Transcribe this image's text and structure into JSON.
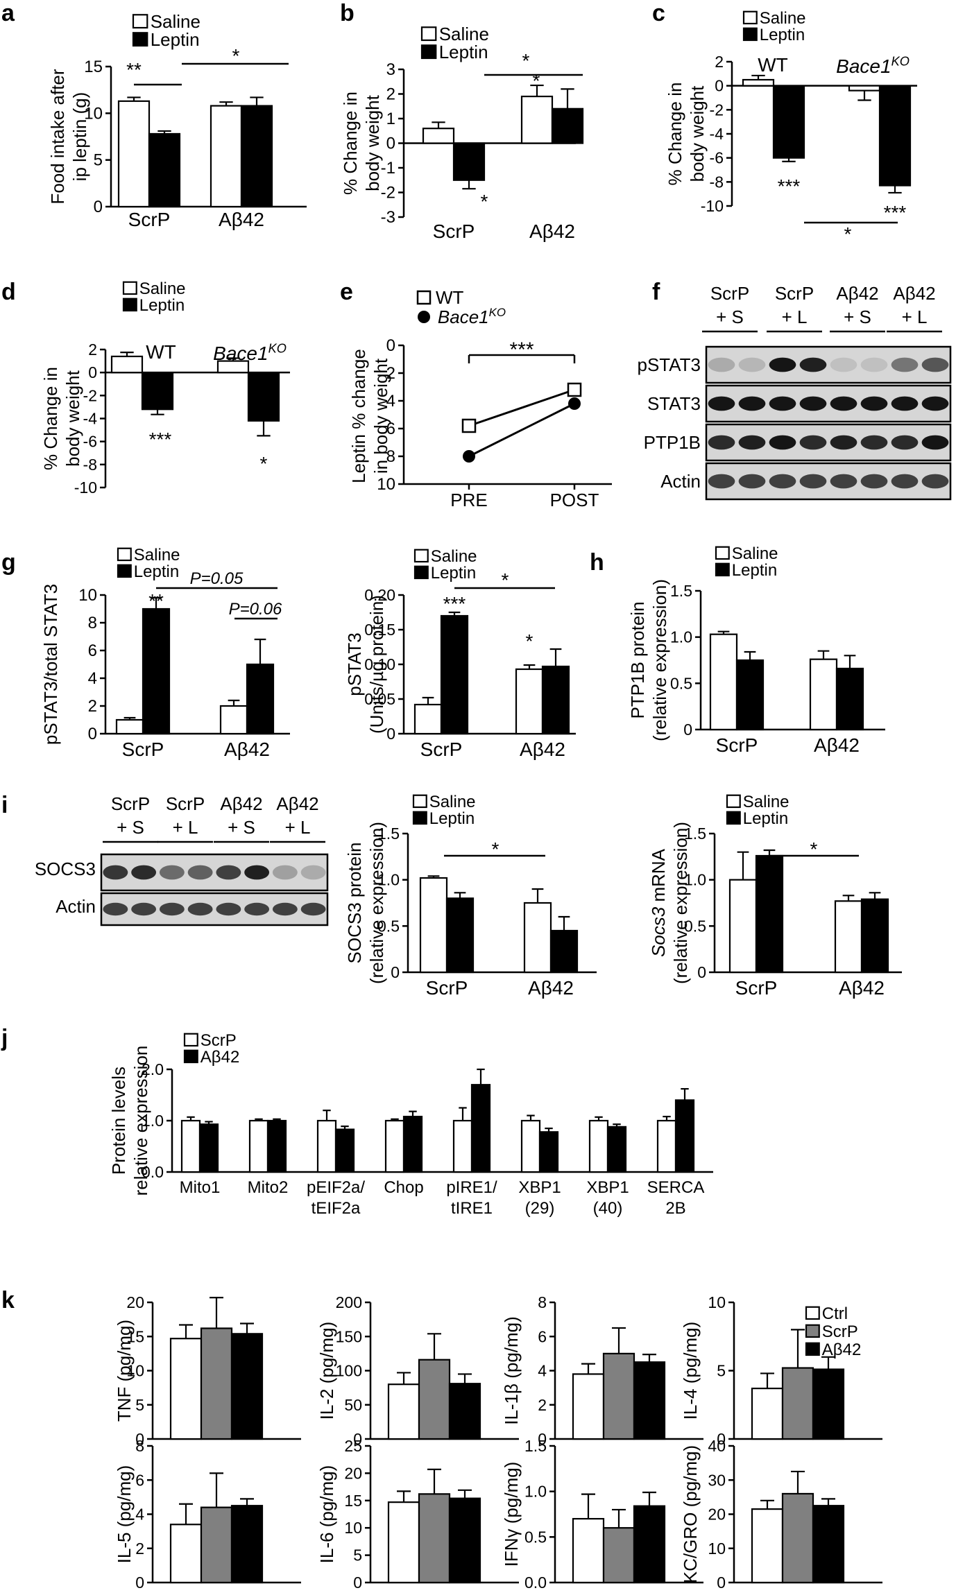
{
  "panel_labels": [
    "a",
    "b",
    "c",
    "d",
    "e",
    "f",
    "g",
    "h",
    "i",
    "j",
    "k"
  ],
  "common": {
    "saline": "Saline",
    "leptin": "Leptin",
    "scrp": "ScrP",
    "abeta": "Aβ42",
    "star1": "*",
    "star2": "**",
    "star3": "***"
  },
  "chart_data": [
    {
      "id": "a",
      "type": "bar",
      "categories": [
        "ScrP",
        "Aβ42"
      ],
      "ylabel": [
        "Food intake after",
        "ip leptin (g)"
      ],
      "ylim": [
        0,
        15
      ],
      "ticks": [
        0,
        5,
        10,
        15
      ],
      "series": [
        {
          "name": "Saline",
          "values": [
            11.3,
            10.8
          ],
          "errors": [
            0.4,
            0.4
          ]
        },
        {
          "name": "Leptin",
          "values": [
            7.8,
            10.8
          ],
          "errors": [
            0.3,
            0.9
          ]
        }
      ],
      "annotations": [
        "**",
        "*"
      ]
    },
    {
      "id": "b",
      "type": "bar",
      "categories": [
        "ScrP",
        "Aβ42"
      ],
      "ylabel": [
        "% Change in",
        "body weight"
      ],
      "ylim": [
        -3,
        3
      ],
      "ticks": [
        -3,
        -2,
        -1,
        0,
        1,
        2,
        3
      ],
      "series": [
        {
          "name": "Saline",
          "values": [
            0.6,
            1.9
          ],
          "errors": [
            0.25,
            0.45
          ]
        },
        {
          "name": "Leptin",
          "values": [
            -1.5,
            1.4
          ],
          "errors": [
            0.35,
            0.8
          ]
        }
      ],
      "annotations": [
        "*",
        "*",
        "*"
      ]
    },
    {
      "id": "c",
      "type": "bar",
      "categories": [
        "WT",
        "Bace1KO"
      ],
      "ylabel": [
        "% Change in",
        "body weight"
      ],
      "ylim": [
        -10,
        2
      ],
      "ticks": [
        -10,
        -8,
        -6,
        -4,
        -2,
        0,
        2
      ],
      "series": [
        {
          "name": "Saline",
          "values": [
            0.5,
            -0.4
          ],
          "errors": [
            0.35,
            0.8
          ]
        },
        {
          "name": "Leptin",
          "values": [
            -6.0,
            -8.3
          ],
          "errors": [
            0.3,
            0.6
          ]
        }
      ],
      "annotations": [
        "***",
        "***",
        "*"
      ]
    },
    {
      "id": "d",
      "type": "bar",
      "categories": [
        "WT",
        "Bace1KO"
      ],
      "ylabel": [
        "% Change in",
        "body weight"
      ],
      "ylim": [
        -10,
        2
      ],
      "ticks": [
        -10,
        -8,
        -6,
        -4,
        -2,
        0,
        2
      ],
      "series": [
        {
          "name": "Saline",
          "values": [
            1.4,
            1.0
          ],
          "errors": [
            0.35,
            0.25
          ]
        },
        {
          "name": "Leptin",
          "values": [
            -3.2,
            -4.2
          ],
          "errors": [
            0.45,
            1.3
          ]
        }
      ],
      "annotations": [
        "***",
        "*"
      ]
    },
    {
      "id": "e",
      "type": "line",
      "categories": [
        "PRE",
        "POST"
      ],
      "ylabel": [
        "Leptin % change",
        "in body weight"
      ],
      "ylim": [
        10,
        0
      ],
      "ticks": [
        0,
        2,
        4,
        6,
        8,
        10
      ],
      "series": [
        {
          "name": "WT",
          "values": [
            5.8,
            3.2
          ]
        },
        {
          "name": "Bace1KO",
          "values": [
            8.0,
            4.2
          ]
        }
      ],
      "annotations": [
        "***"
      ]
    },
    {
      "id": "g1",
      "type": "bar",
      "categories": [
        "ScrP",
        "Aβ42"
      ],
      "ylabel": [
        "pSTAT3/total STAT3"
      ],
      "ylim": [
        0,
        10
      ],
      "ticks": [
        0,
        2,
        4,
        6,
        8,
        10
      ],
      "series": [
        {
          "name": "Saline",
          "values": [
            1.0,
            2.0
          ],
          "errors": [
            0.15,
            0.4
          ]
        },
        {
          "name": "Leptin",
          "values": [
            9.0,
            5.0
          ],
          "errors": [
            0.8,
            1.8
          ]
        }
      ],
      "annotations": [
        "**",
        "P=0.05",
        "P=0.06"
      ]
    },
    {
      "id": "g2",
      "type": "bar",
      "categories": [
        "ScrP",
        "Aβ42"
      ],
      "ylabel": [
        "pSTAT3",
        "(Units/µg protein)"
      ],
      "ylim": [
        0,
        0.2
      ],
      "ticks": [
        "0",
        "0.05",
        "0.10",
        "0.15",
        "0.20"
      ],
      "series": [
        {
          "name": "Saline",
          "values": [
            0.042,
            0.093
          ],
          "errors": [
            0.01,
            0.006
          ]
        },
        {
          "name": "Leptin",
          "values": [
            0.17,
            0.097
          ],
          "errors": [
            0.005,
            0.025
          ]
        }
      ],
      "annotations": [
        "***",
        "*",
        "*"
      ]
    },
    {
      "id": "h",
      "type": "bar",
      "categories": [
        "ScrP",
        "Aβ42"
      ],
      "ylabel": [
        "PTP1B protein",
        "(relative expression)"
      ],
      "ylim": [
        0,
        1.5
      ],
      "ticks": [
        "0",
        "0.5",
        "1.0",
        "1.5"
      ],
      "series": [
        {
          "name": "Saline",
          "values": [
            1.03,
            0.76
          ],
          "errors": [
            0.03,
            0.09
          ]
        },
        {
          "name": "Leptin",
          "values": [
            0.75,
            0.66
          ],
          "errors": [
            0.09,
            0.14
          ]
        }
      ]
    },
    {
      "id": "i2",
      "type": "bar",
      "categories": [
        "ScrP",
        "Aβ42"
      ],
      "ylabel": [
        "SOCS3 protein",
        "(relative expression)"
      ],
      "ylim": [
        0,
        1.5
      ],
      "ticks": [
        "0",
        "0.5",
        "1.0",
        "1.5"
      ],
      "series": [
        {
          "name": "Saline",
          "values": [
            1.02,
            0.75
          ],
          "errors": [
            0.02,
            0.15
          ]
        },
        {
          "name": "Leptin",
          "values": [
            0.8,
            0.45
          ],
          "errors": [
            0.06,
            0.15
          ]
        }
      ],
      "annotations": [
        "*"
      ]
    },
    {
      "id": "i3",
      "type": "bar",
      "categories": [
        "ScrP",
        "Aβ42"
      ],
      "ylabel": [
        "Socs3 mRNA",
        "(relative expression)"
      ],
      "ylim": [
        0,
        1.5
      ],
      "ticks": [
        "0",
        "0.5",
        "1.0",
        "1.5"
      ],
      "series": [
        {
          "name": "Saline",
          "values": [
            1.0,
            0.77
          ],
          "errors": [
            0.3,
            0.06
          ]
        },
        {
          "name": "Leptin",
          "values": [
            1.26,
            0.79
          ],
          "errors": [
            0.06,
            0.07
          ]
        }
      ],
      "annotations": [
        "*"
      ]
    },
    {
      "id": "j",
      "type": "bar",
      "categories": [
        [
          "Mito1"
        ],
        [
          "Mito2"
        ],
        [
          "pEIF2a/",
          "tEIF2a"
        ],
        [
          "Chop"
        ],
        [
          "pIRE1/",
          "tIRE1"
        ],
        [
          "XBP1",
          "(29)"
        ],
        [
          "XBP1",
          "(40)"
        ],
        [
          "SERCA",
          "2B"
        ]
      ],
      "ylabel": [
        "Protein levels",
        "relative expression"
      ],
      "ylim": [
        0,
        2
      ],
      "ticks": [
        "0.0",
        "1.0",
        "2.0"
      ],
      "series": [
        {
          "name": "ScrP",
          "values": [
            1.0,
            1.0,
            1.0,
            1.0,
            1.0,
            1.0,
            1.0,
            1.0
          ],
          "errors": [
            0.07,
            0.03,
            0.2,
            0.03,
            0.25,
            0.1,
            0.07,
            0.08
          ]
        },
        {
          "name": "Aβ42",
          "values": [
            0.93,
            1.0,
            0.83,
            1.08,
            1.7,
            0.78,
            0.88,
            1.4
          ],
          "errors": [
            0.05,
            0.03,
            0.06,
            0.1,
            0.3,
            0.07,
            0.05,
            0.22
          ]
        }
      ]
    },
    {
      "id": "k1",
      "type": "bar",
      "ylabel": "TNF (pg/mg)",
      "ylim": [
        0,
        20
      ],
      "ticks": [
        0,
        5,
        10,
        15,
        20
      ],
      "series": [
        {
          "name": "Ctrl",
          "values": [
            14.7
          ],
          "errors": [
            2.0
          ]
        },
        {
          "name": "ScrP",
          "values": [
            16.2
          ],
          "errors": [
            4.5
          ]
        },
        {
          "name": "Aβ42",
          "values": [
            15.4
          ],
          "errors": [
            1.5
          ]
        }
      ]
    },
    {
      "id": "k2",
      "type": "bar",
      "ylabel": "IL-2 (pg/mg)",
      "ylim": [
        0,
        200
      ],
      "ticks": [
        0,
        50,
        100,
        150,
        200
      ],
      "series": [
        {
          "name": "Ctrl",
          "values": [
            80
          ],
          "errors": [
            17
          ]
        },
        {
          "name": "ScrP",
          "values": [
            116
          ],
          "errors": [
            38
          ]
        },
        {
          "name": "Aβ42",
          "values": [
            81
          ],
          "errors": [
            14
          ]
        }
      ]
    },
    {
      "id": "k3",
      "type": "bar",
      "ylabel": "IL-1β (pg/mg)",
      "ylim": [
        0,
        8
      ],
      "ticks": [
        0,
        2,
        4,
        6,
        8
      ],
      "series": [
        {
          "name": "Ctrl",
          "values": [
            3.8
          ],
          "errors": [
            0.6
          ]
        },
        {
          "name": "ScrP",
          "values": [
            5.0
          ],
          "errors": [
            1.5
          ]
        },
        {
          "name": "Aβ42",
          "values": [
            4.5
          ],
          "errors": [
            0.45
          ]
        }
      ]
    },
    {
      "id": "k4",
      "type": "bar",
      "ylabel": "IL-4 (pg/mg)",
      "ylim": [
        0,
        10
      ],
      "ticks": [
        0,
        5,
        10
      ],
      "series": [
        {
          "name": "Ctrl",
          "values": [
            3.7
          ],
          "errors": [
            1.1
          ]
        },
        {
          "name": "ScrP",
          "values": [
            5.2
          ],
          "errors": [
            2.8
          ]
        },
        {
          "name": "Aβ42",
          "values": [
            5.1
          ],
          "errors": [
            0.9
          ]
        }
      ]
    },
    {
      "id": "k5",
      "type": "bar",
      "ylabel": "IL-5 (pg/mg)",
      "ylim": [
        0,
        8
      ],
      "ticks": [
        0,
        2,
        4,
        6,
        8
      ],
      "series": [
        {
          "name": "Ctrl",
          "values": [
            3.4
          ],
          "errors": [
            1.2
          ]
        },
        {
          "name": "ScrP",
          "values": [
            4.4
          ],
          "errors": [
            2.0
          ]
        },
        {
          "name": "Aβ42",
          "values": [
            4.5
          ],
          "errors": [
            0.4
          ]
        }
      ]
    },
    {
      "id": "k6",
      "type": "bar",
      "ylabel": "IL-6 (pg/mg)",
      "ylim": [
        0,
        25
      ],
      "ticks": [
        0,
        5,
        10,
        15,
        20,
        25
      ],
      "series": [
        {
          "name": "Ctrl",
          "values": [
            14.7
          ],
          "errors": [
            2.0
          ]
        },
        {
          "name": "ScrP",
          "values": [
            16.2
          ],
          "errors": [
            4.5
          ]
        },
        {
          "name": "Aβ42",
          "values": [
            15.4
          ],
          "errors": [
            1.5
          ]
        }
      ]
    },
    {
      "id": "k7",
      "type": "bar",
      "ylabel": "IFNγ (pg/mg)",
      "ylim": [
        0,
        1.5
      ],
      "ticks": [
        "0.0",
        "0.5",
        "1.0",
        "1.5"
      ],
      "series": [
        {
          "name": "Ctrl",
          "values": [
            0.7
          ],
          "errors": [
            0.27
          ]
        },
        {
          "name": "ScrP",
          "values": [
            0.6
          ],
          "errors": [
            0.2
          ]
        },
        {
          "name": "Aβ42",
          "values": [
            0.84
          ],
          "errors": [
            0.15
          ]
        }
      ]
    },
    {
      "id": "k8",
      "type": "bar",
      "ylabel": "KC/GRO (pg/mg)",
      "ylim": [
        0,
        40
      ],
      "ticks": [
        0,
        10,
        20,
        30,
        40
      ],
      "series": [
        {
          "name": "Ctrl",
          "values": [
            21.5
          ],
          "errors": [
            2.5
          ]
        },
        {
          "name": "ScrP",
          "values": [
            26
          ],
          "errors": [
            6.5
          ]
        },
        {
          "name": "Aβ42",
          "values": [
            22.5
          ],
          "errors": [
            2.0
          ]
        }
      ]
    }
  ],
  "legend_e": [
    "WT",
    "Bace1KO"
  ],
  "legend_k": [
    "Ctrl",
    "ScrP",
    "Aβ42"
  ],
  "group_labels": {
    "wt": "WT",
    "bace": "Bace1KO"
  },
  "blot_f": {
    "lanes": [
      "ScrP",
      "ScrP",
      "Aβ42",
      "Aβ42"
    ],
    "treat": [
      "+ S",
      "+ L",
      "+ S",
      "+ L"
    ],
    "rows": [
      "pSTAT3",
      "STAT3",
      "PTP1B",
      "Actin"
    ]
  },
  "blot_i": {
    "lanes": [
      "ScrP",
      "ScrP",
      "Aβ42",
      "Aβ42"
    ],
    "treat": [
      "+ S",
      "+ L",
      "+ S",
      "+ L"
    ],
    "rows": [
      "SOCS3",
      "Actin"
    ]
  },
  "colors": {
    "black": "#000000",
    "white": "#ffffff",
    "gray": "#808080",
    "blot_bg": "#d6d6d6"
  }
}
